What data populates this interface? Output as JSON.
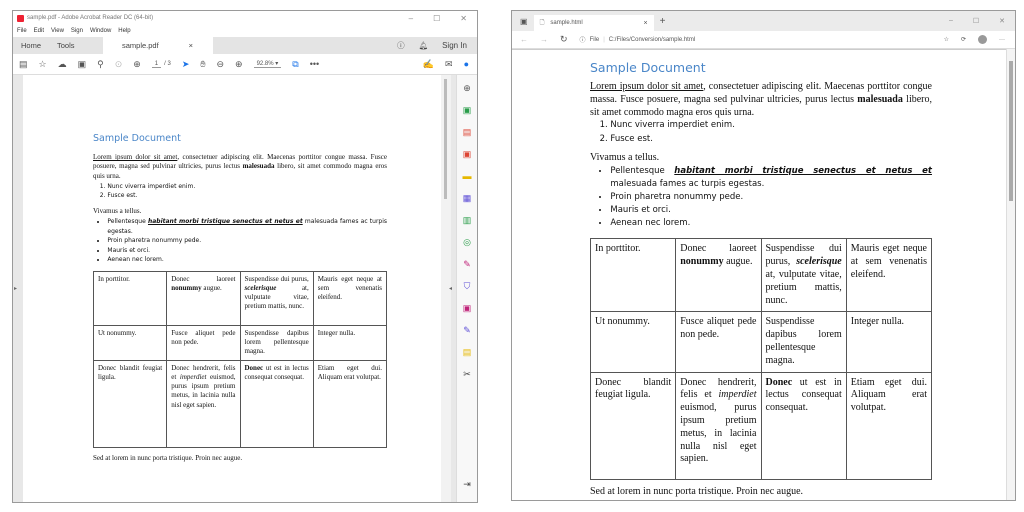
{
  "acrobat": {
    "title": "sample.pdf - Adobe Acrobat Reader DC (64-bit)",
    "menu": [
      "File",
      "Edit",
      "View",
      "Sign",
      "Window",
      "Help"
    ],
    "tabs": {
      "home": "Home",
      "tools": "Tools",
      "doc": "sample.pdf",
      "close": "×",
      "sign_in": "Sign In"
    },
    "page_current": "1",
    "page_total": "/ 3",
    "zoom": "92.8%",
    "window_controls": [
      "–",
      "☐",
      "✕"
    ],
    "tool_icons": [
      "save-icon",
      "bookmark-star-icon",
      "upload-cloud-icon",
      "print-icon",
      "zoom-search-icon",
      "prev-page-icon",
      "next-page-icon",
      "select-cursor-icon",
      "hand-icon",
      "zoom-out-icon",
      "zoom-in-icon",
      "fit-page-icon",
      "more-icon",
      "sign-icon",
      "email-icon",
      "share-user-icon"
    ]
  },
  "edge": {
    "tab_title": "sample.html",
    "tab_close": "×",
    "new_tab": "+",
    "address_prefix": "File",
    "address": "C:/Files/Conversion/sample.html",
    "window_controls": [
      "–",
      "☐",
      "✕"
    ]
  },
  "document": {
    "title": "Sample Document",
    "para1": [
      {
        "t": "Lorem ipsum dolor sit amet",
        "s": "u"
      },
      {
        "t": ", consectetuer adipiscing elit. Maecenas porttitor congue massa. Fusce posuere, magna sed pulvinar ultricies, purus lectus "
      },
      {
        "t": "malesuada",
        "s": "b"
      },
      {
        "t": " libero, sit amet commodo magna eros quis urna."
      }
    ],
    "ordered": [
      "Nunc viverra imperdiet enim.",
      "Fusce est."
    ],
    "para2": "Vivamus a tellus.",
    "bullet1": [
      {
        "t": "Pellentesque "
      },
      {
        "t": "habitant morbi tristique senectus et netus et",
        "s": "biu"
      },
      {
        "t": " malesuada fames ac turpis egestas."
      }
    ],
    "bullets": [
      "Proin pharetra nonummy pede.",
      "Mauris et orci.",
      "Aenean nec lorem."
    ],
    "table": [
      [
        [
          {
            "t": "In porttitor."
          }
        ],
        [
          {
            "t": "Donec laoreet "
          },
          {
            "t": "nonummy",
            "s": "b"
          },
          {
            "t": " augue."
          }
        ],
        [
          {
            "t": "Suspendisse dui purus, "
          },
          {
            "t": "scelerisque",
            "s": "bi"
          },
          {
            "t": " at, vulputate vitae, pretium mattis, nunc."
          }
        ],
        [
          {
            "t": "Mauris eget neque at sem venenatis eleifend."
          }
        ]
      ],
      [
        [
          {
            "t": "Ut nonummy."
          }
        ],
        [
          {
            "t": "Fusce aliquet pede non pede."
          }
        ],
        [
          {
            "t": "Suspendisse dapibus lorem pellentesque magna."
          }
        ],
        [
          {
            "t": "Integer nulla."
          }
        ]
      ],
      [
        [
          {
            "t": "Donec blandit feugiat ligula."
          }
        ],
        [
          {
            "t": "Donec hendrerit, felis et "
          },
          {
            "t": "imperdiet",
            "s": "i"
          },
          {
            "t": " euismod, purus ipsum pretium metus, in lacinia nulla nisl eget sapien."
          }
        ],
        [
          {
            "t": "Donec",
            "s": "b"
          },
          {
            "t": " ut est in lectus consequat consequat."
          }
        ],
        [
          {
            "t": "Etiam eget dui. Aliquam erat volutpat."
          }
        ]
      ]
    ],
    "footer": "Sed at lorem in nunc porta tristique. Proin nec augue."
  }
}
